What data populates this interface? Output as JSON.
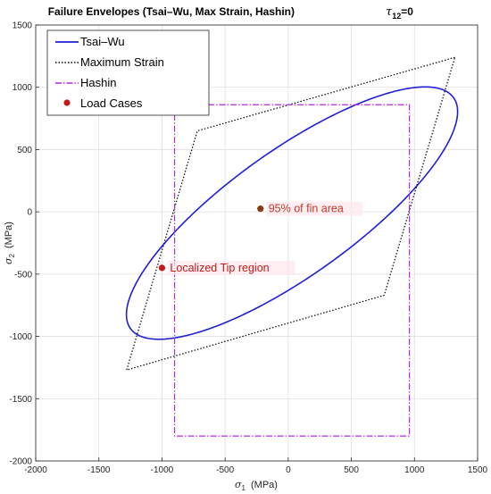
{
  "chart_data": {
    "type": "line",
    "title": "Failure Envelopes (Tsai–Wu, Max Strain, Hashin)",
    "title_tau": "τ",
    "title_tau_sub": "12",
    "title_tau_value": "=0",
    "xlabel": "σ",
    "xlabel_sub": "1",
    "xlabel_unit": "(MPa)",
    "ylabel": "σ",
    "ylabel_sub": "2",
    "ylabel_unit": "(MPa)",
    "xlim": [
      -2000,
      1500
    ],
    "ylim": [
      -2000,
      1500
    ],
    "xticks": [
      -2000,
      -1500,
      -1000,
      -500,
      0,
      500,
      1000,
      1500
    ],
    "yticks": [
      -2000,
      -1500,
      -1000,
      -500,
      0,
      500,
      1000,
      1500
    ],
    "grid": true,
    "legend_position": "top-left",
    "series": [
      {
        "name": "Tsai–Wu",
        "kind": "ellipse",
        "color": "#1f1fd6",
        "style": "solid",
        "center": [
          30,
          -10
        ],
        "semi_major": 1580,
        "semi_minor": 500,
        "angle_deg": 36
      },
      {
        "name": "Maximum Strain",
        "kind": "polygon",
        "color": "#000000",
        "style": "dotted",
        "points": [
          [
            1320,
            1240
          ],
          [
            -720,
            650
          ],
          [
            -1280,
            -1270
          ],
          [
            760,
            -670
          ]
        ]
      },
      {
        "name": "Hashin",
        "kind": "rectangle",
        "color": "#b428e6",
        "style": "dashdot",
        "points": [
          [
            -900,
            860
          ],
          [
            960,
            860
          ],
          [
            960,
            -1800
          ],
          [
            -900,
            -1800
          ]
        ]
      },
      {
        "name": "Load Cases",
        "kind": "points",
        "color": "#c21a1a",
        "points": [
          {
            "x": -1000,
            "y": -450,
            "label": "Localized Tip region",
            "color": "#c21a1a"
          },
          {
            "x": -220,
            "y": 25,
            "label": "95% of fin area",
            "color": "#8a3b12"
          }
        ]
      }
    ]
  }
}
